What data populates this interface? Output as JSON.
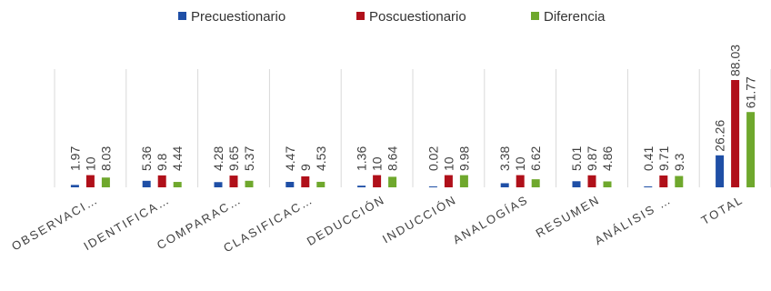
{
  "chart_data": {
    "type": "bar",
    "title": "",
    "xlabel": "",
    "ylabel": "",
    "categories": [
      "OBSERVACI…",
      "IDENTIFICA…",
      "COMPARAC…",
      "CLASIFICAC…",
      "DEDUCCIÓN",
      "INDUCCIÓN",
      "ANALOGÍAS",
      "RESUMEN",
      "ANÁLISIS …",
      "TOTAL"
    ],
    "series": [
      {
        "name": "Precuestionario",
        "color": "#1F4FA6",
        "values": [
          1.97,
          5.36,
          4.28,
          4.47,
          1.36,
          0.02,
          3.38,
          5.01,
          0.41,
          26.26
        ]
      },
      {
        "name": "Poscuestionario",
        "color": "#B0101A",
        "values": [
          10,
          9.8,
          9.65,
          9,
          10,
          10,
          10,
          9.87,
          9.71,
          88.03
        ]
      },
      {
        "name": "Diferencia",
        "color": "#6FA82D",
        "values": [
          8.03,
          4.44,
          5.37,
          4.53,
          8.64,
          9.98,
          6.62,
          4.86,
          9.3,
          61.77
        ]
      }
    ],
    "ylim": [
      0,
      100
    ],
    "grid": false,
    "legend_position": "top"
  }
}
